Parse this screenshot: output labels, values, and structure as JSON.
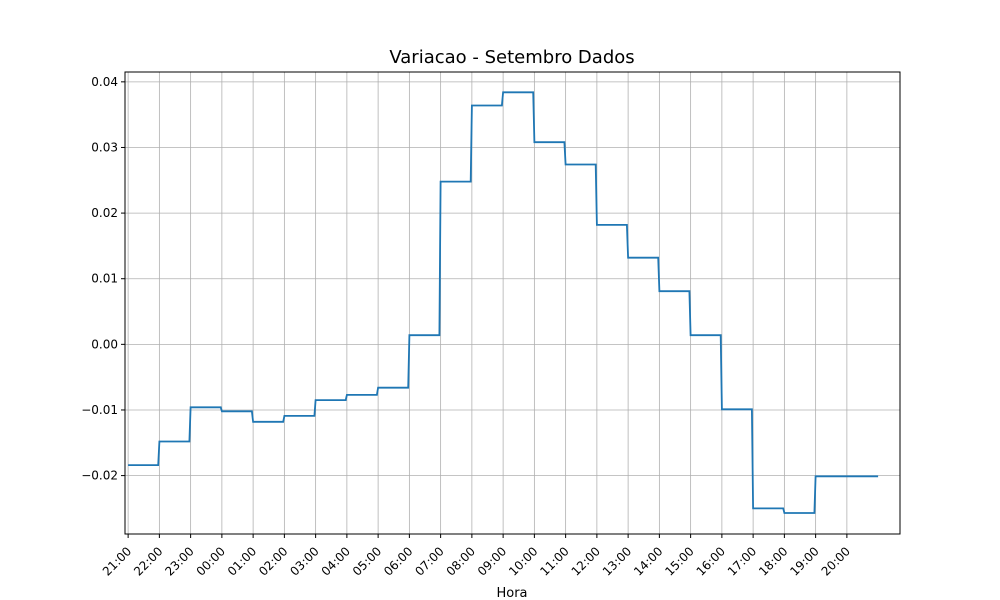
{
  "chart_data": {
    "type": "line",
    "title": "Variacao - Setembro Dados",
    "xlabel": "Hora",
    "ylabel": "",
    "x_ticks": [
      "21:00",
      "22:00",
      "23:00",
      "00:00",
      "01:00",
      "02:00",
      "03:00",
      "04:00",
      "05:00",
      "06:00",
      "07:00",
      "08:00",
      "09:00",
      "10:00",
      "11:00",
      "12:00",
      "13:00",
      "14:00",
      "15:00",
      "16:00",
      "17:00",
      "18:00",
      "19:00",
      "20:00"
    ],
    "y_ticks": [
      -0.02,
      -0.01,
      0.0,
      0.01,
      0.02,
      0.03,
      0.04
    ],
    "y_tick_labels": [
      "−0.02",
      "−0.01",
      "0.00",
      "0.01",
      "0.02",
      "0.03",
      "0.04"
    ],
    "ylim": [
      -0.0289,
      0.0415
    ],
    "xlim": [
      -0.1,
      24.7
    ],
    "grid": true,
    "line_style": "step",
    "series": [
      {
        "color": "#1f77b4",
        "x": [
          0,
          1,
          2,
          3,
          4,
          5,
          6,
          7,
          8,
          9,
          10,
          11,
          12,
          13,
          14,
          15,
          16,
          17,
          18,
          19,
          20,
          21,
          22,
          23,
          24
        ],
        "values": [
          -0.0184,
          -0.0148,
          -0.0096,
          -0.0102,
          -0.0118,
          -0.0109,
          -0.0085,
          -0.0077,
          -0.0066,
          0.0014,
          0.0248,
          0.0364,
          0.0384,
          0.0308,
          0.0274,
          0.0182,
          0.0132,
          0.0081,
          0.0014,
          -0.0099,
          -0.025,
          -0.0257,
          -0.0201,
          -0.0201,
          -0.0201
        ]
      }
    ]
  }
}
